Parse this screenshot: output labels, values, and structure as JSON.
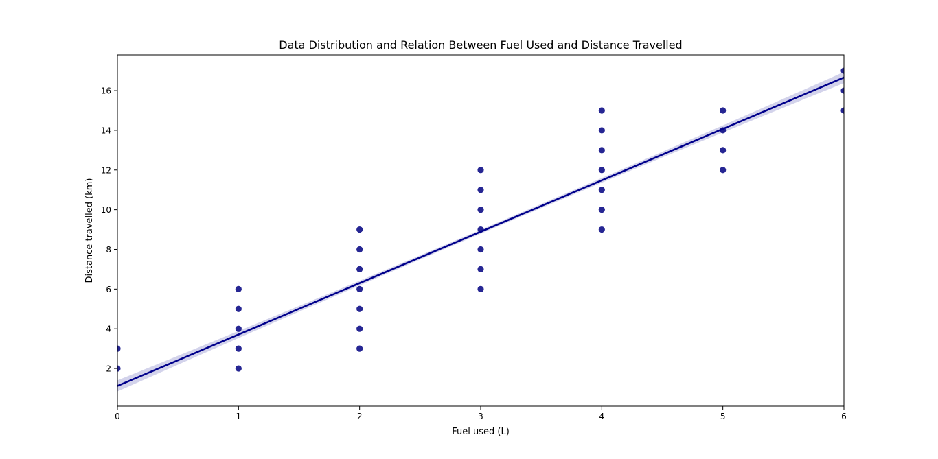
{
  "chart_data": {
    "type": "scatter",
    "title": "Data Distribution and Relation Between Fuel Used and Distance Travelled",
    "xlabel": "Fuel used (L)",
    "ylabel": "Distance travelled (km)",
    "xlim": [
      0,
      6
    ],
    "ylim": [
      0.1,
      17.8
    ],
    "xticks": [
      0,
      1,
      2,
      3,
      4,
      5,
      6
    ],
    "yticks": [
      2,
      4,
      6,
      8,
      10,
      12,
      14,
      16
    ],
    "grid": false,
    "legend": "none",
    "points": [
      {
        "x": 0,
        "y": 2
      },
      {
        "x": 0,
        "y": 3
      },
      {
        "x": 1,
        "y": 2
      },
      {
        "x": 1,
        "y": 3
      },
      {
        "x": 1,
        "y": 4
      },
      {
        "x": 1,
        "y": 5
      },
      {
        "x": 1,
        "y": 6
      },
      {
        "x": 2,
        "y": 3
      },
      {
        "x": 2,
        "y": 4
      },
      {
        "x": 2,
        "y": 5
      },
      {
        "x": 2,
        "y": 6
      },
      {
        "x": 2,
        "y": 7
      },
      {
        "x": 2,
        "y": 8
      },
      {
        "x": 2,
        "y": 9
      },
      {
        "x": 3,
        "y": 6
      },
      {
        "x": 3,
        "y": 7
      },
      {
        "x": 3,
        "y": 8
      },
      {
        "x": 3,
        "y": 9
      },
      {
        "x": 3,
        "y": 10
      },
      {
        "x": 3,
        "y": 11
      },
      {
        "x": 3,
        "y": 12
      },
      {
        "x": 4,
        "y": 9
      },
      {
        "x": 4,
        "y": 10
      },
      {
        "x": 4,
        "y": 11
      },
      {
        "x": 4,
        "y": 12
      },
      {
        "x": 4,
        "y": 13
      },
      {
        "x": 4,
        "y": 14
      },
      {
        "x": 4,
        "y": 15
      },
      {
        "x": 5,
        "y": 12
      },
      {
        "x": 5,
        "y": 13
      },
      {
        "x": 5,
        "y": 14
      },
      {
        "x": 5,
        "y": 15
      },
      {
        "x": 6,
        "y": 15
      },
      {
        "x": 6,
        "y": 16
      },
      {
        "x": 6,
        "y": 17
      }
    ],
    "regression": {
      "slope": 2.59,
      "intercept": 1.12,
      "ci_halfwidth_ends": 0.28,
      "ci_halfwidth_center": 0.1
    },
    "colors": {
      "points": "#000080",
      "line": "#00008b",
      "ci_band": "#c8c8e6",
      "axes": "#000000"
    }
  }
}
